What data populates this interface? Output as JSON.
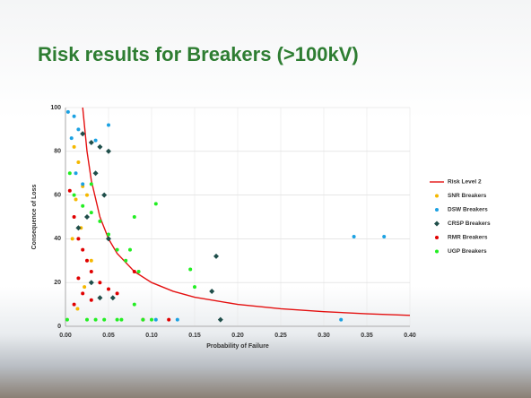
{
  "chart_data": {
    "type": "scatter",
    "title": "Risk results for Breakers (>100kV)",
    "x_label": "Probability of Failure",
    "y_label": "Consequence of Loss",
    "xlim": [
      0,
      0.4
    ],
    "ylim": [
      0,
      100
    ],
    "xticks": [
      {
        "value": 0,
        "label": "0.00"
      },
      {
        "value": 0.05,
        "label": "0.05"
      },
      {
        "value": 0.1,
        "label": "0.10"
      },
      {
        "value": 0.15,
        "label": "0.15"
      },
      {
        "value": 0.2,
        "label": "0.20"
      },
      {
        "value": 0.25,
        "label": "0.25"
      },
      {
        "value": 0.3,
        "label": "0.30"
      },
      {
        "value": 0.35,
        "label": "0.35"
      },
      {
        "value": 0.4,
        "label": "0.40"
      }
    ],
    "yticks": [
      0,
      20,
      40,
      60,
      80,
      100
    ],
    "grid": true,
    "legend": "right",
    "series": [
      {
        "name": "Risk Level 2",
        "color": "#e41010",
        "marker": "line",
        "x": [
          0.02,
          0.025,
          0.03,
          0.04,
          0.05,
          0.06,
          0.08,
          0.1,
          0.125,
          0.15,
          0.2,
          0.25,
          0.3,
          0.35,
          0.4
        ],
        "values": [
          100,
          80,
          66.7,
          50,
          40,
          33.3,
          25,
          20,
          16,
          13.3,
          10,
          8,
          6.7,
          5.7,
          5
        ]
      },
      {
        "name": "SNR Breakers",
        "color": "#f5b800",
        "marker": "circle",
        "x": [
          0.01,
          0.015,
          0.02,
          0.012,
          0.025,
          0.018,
          0.008,
          0.03,
          0.022,
          0.014
        ],
        "values": [
          82,
          75,
          64,
          58,
          60,
          45,
          40,
          30,
          18,
          8
        ]
      },
      {
        "name": "DSW Breakers",
        "color": "#1ba1e2",
        "marker": "circle",
        "x": [
          0.003,
          0.01,
          0.007,
          0.015,
          0.05,
          0.335,
          0.37,
          0.32,
          0.012,
          0.02,
          0.035,
          0.105,
          0.13
        ],
        "values": [
          98,
          96,
          86,
          90,
          92,
          41,
          41,
          3,
          70,
          65,
          85,
          3,
          3
        ]
      },
      {
        "name": "CRSP Breakers",
        "color": "#1f4e4a",
        "marker": "diamond",
        "x": [
          0.02,
          0.03,
          0.04,
          0.05,
          0.035,
          0.045,
          0.025,
          0.05,
          0.015,
          0.03,
          0.175,
          0.17,
          0.18,
          0.04,
          0.055
        ],
        "values": [
          88,
          84,
          82,
          80,
          70,
          60,
          50,
          40,
          45,
          20,
          32,
          16,
          3,
          13,
          13
        ]
      },
      {
        "name": "RMR Breakers",
        "color": "#e00000",
        "marker": "circle",
        "x": [
          0.005,
          0.01,
          0.015,
          0.02,
          0.025,
          0.03,
          0.04,
          0.05,
          0.06,
          0.08,
          0.12,
          0.09,
          0.01,
          0.02,
          0.03,
          0.015
        ],
        "values": [
          62,
          50,
          40,
          35,
          30,
          25,
          20,
          17,
          15,
          25,
          3,
          3,
          10,
          15,
          12,
          22
        ]
      },
      {
        "name": "UGP Breakers",
        "color": "#22ee22",
        "marker": "circle",
        "x": [
          0.002,
          0.005,
          0.01,
          0.02,
          0.03,
          0.04,
          0.05,
          0.06,
          0.07,
          0.075,
          0.08,
          0.085,
          0.105,
          0.145,
          0.15,
          0.09,
          0.06,
          0.025,
          0.035,
          0.045,
          0.065,
          0.1,
          0.08,
          0.03
        ],
        "values": [
          3,
          70,
          60,
          55,
          52,
          48,
          42,
          35,
          30,
          35,
          50,
          25,
          56,
          26,
          18,
          3,
          3,
          3,
          3,
          3,
          3,
          3,
          10,
          65
        ]
      }
    ]
  }
}
